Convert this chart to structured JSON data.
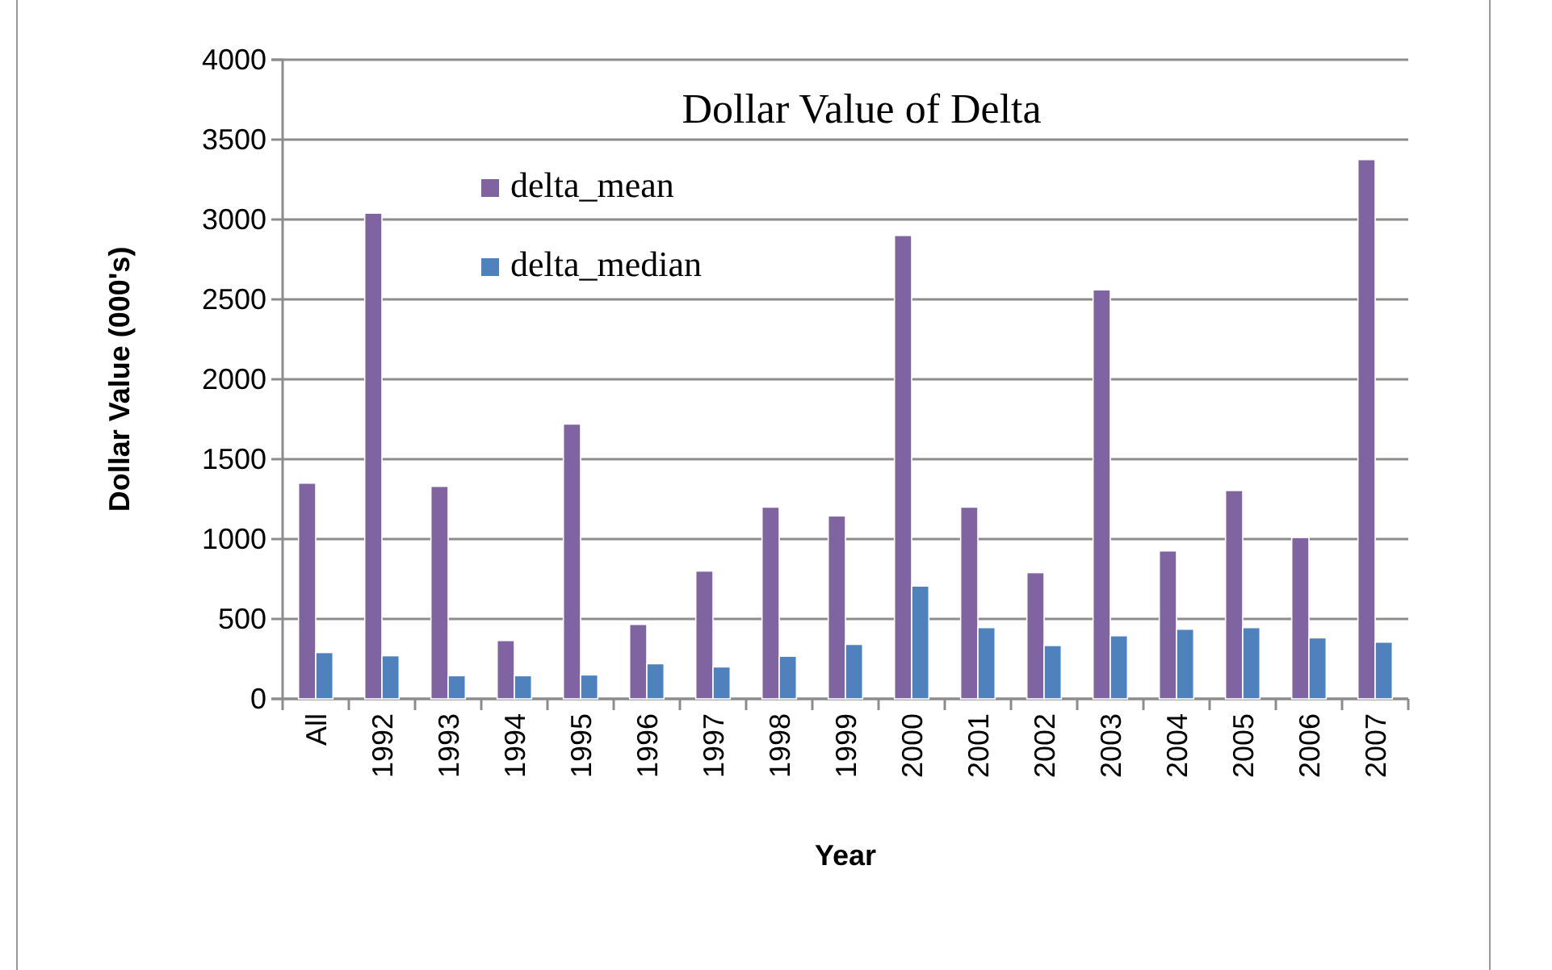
{
  "chart_data": {
    "type": "bar",
    "title": "Dollar Value of Delta",
    "xlabel": "Year",
    "ylabel": "Dollar Value (000's)",
    "categories": [
      "All",
      "1992",
      "1993",
      "1994",
      "1995",
      "1996",
      "1997",
      "1998",
      "1999",
      "2000",
      "2001",
      "2002",
      "2003",
      "2004",
      "2005",
      "2006",
      "2007"
    ],
    "series": [
      {
        "name": "delta_mean",
        "color": "#8064a2",
        "values": [
          1350,
          3040,
          1330,
          365,
          1720,
          466,
          800,
          1200,
          1145,
          2900,
          1200,
          790,
          2560,
          926,
          1304,
          1010,
          3375
        ]
      },
      {
        "name": "delta_median",
        "color": "#4f81bd",
        "values": [
          290,
          270,
          145,
          145,
          150,
          220,
          200,
          267,
          341,
          706,
          446,
          334,
          395,
          436,
          446,
          382,
          355
        ]
      }
    ],
    "ylim": [
      0,
      4000
    ],
    "yticks": [
      0,
      500,
      1000,
      1500,
      2000,
      2500,
      3000,
      3500,
      4000
    ],
    "grid": "y",
    "legend": "top left"
  }
}
